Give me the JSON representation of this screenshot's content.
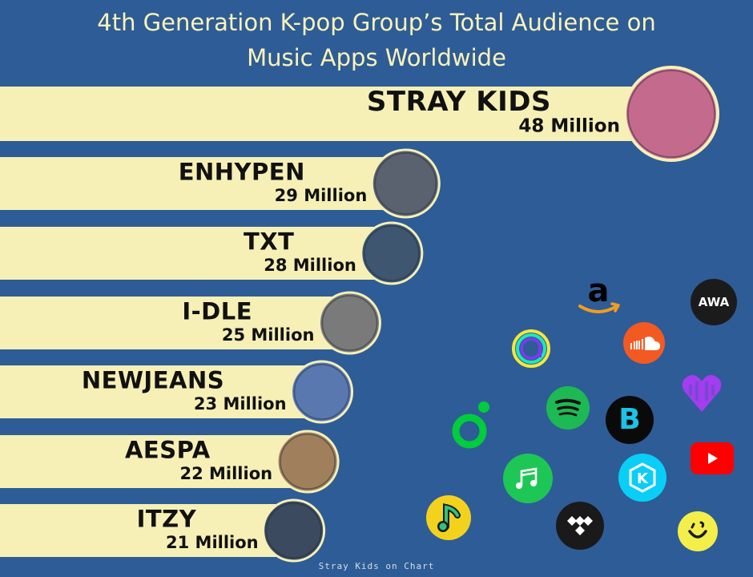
{
  "title": {
    "line1": "4th Generation K-pop Group’s Total Audience on",
    "line2": "Music Apps Worldwide"
  },
  "footer": "Stray Kids on Chart",
  "chart_data": {
    "type": "bar",
    "orientation": "horizontal",
    "title": "4th Generation K-pop Group’s Total Audience on Music Apps Worldwide",
    "categories": [
      "STRAY KIDS",
      "ENHYPEN",
      "TXT",
      "I-DLE",
      "NEWJEANS",
      "AESPA",
      "ITZY"
    ],
    "values": [
      48,
      29,
      28,
      25,
      23,
      22,
      21
    ],
    "value_labels": [
      "48 Million",
      "29 Million",
      "28 Million",
      "25 Million",
      "23 Million",
      "22 Million",
      "21 Million"
    ],
    "units": "Million",
    "bar_color": "#f6f0b6",
    "background_color": "#2e5c96"
  },
  "apps": [
    {
      "name": "amazon-music-icon",
      "color": "#000000"
    },
    {
      "name": "awa-icon",
      "label": "AWA",
      "color": "#1a1a1a"
    },
    {
      "name": "anghami-icon",
      "color": "#7c3aed"
    },
    {
      "name": "soundcloud-icon",
      "color": "#ff5500"
    },
    {
      "name": "deezer-icon",
      "color": "#a238ff"
    },
    {
      "name": "melon-icon",
      "color": "#00cd3c"
    },
    {
      "name": "spotify-icon",
      "color": "#1db954"
    },
    {
      "name": "boomplay-icon",
      "color": "#0a0a0a"
    },
    {
      "name": "music-note-app-icon",
      "color": "#1ec755"
    },
    {
      "name": "kkbox-icon",
      "color": "#09cef6"
    },
    {
      "name": "youtube-icon",
      "color": "#ff0000"
    },
    {
      "name": "qq-music-icon",
      "color": "#31c27c"
    },
    {
      "name": "tidal-icon",
      "color": "#1a1a1a"
    },
    {
      "name": "smile-app-icon",
      "color": "#f4ee4a"
    }
  ]
}
